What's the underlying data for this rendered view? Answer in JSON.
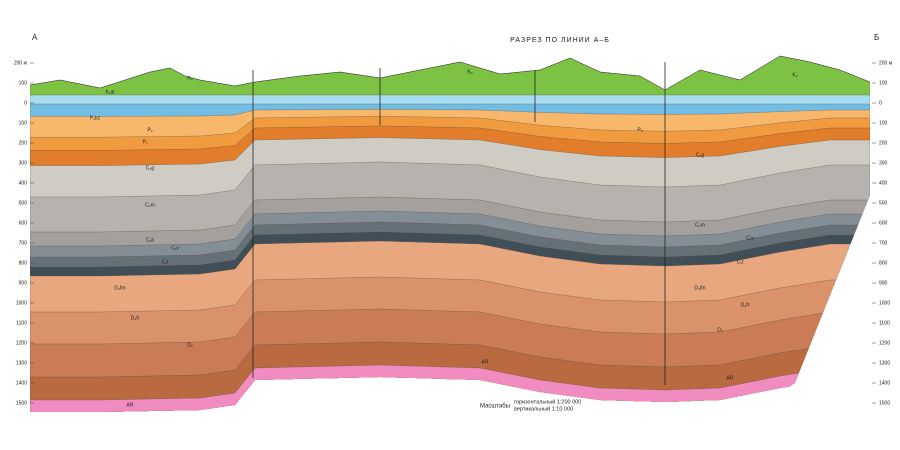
{
  "title": "РАЗРЕЗ ПО ЛИНИИ А–Б",
  "corner_left": "А",
  "corner_right": "Б",
  "depth_axis": {
    "ticks": [
      {
        "value": 200,
        "label": "200 м"
      },
      100,
      0,
      {
        "value": -100,
        "label": "100"
      },
      {
        "value": -200,
        "label": "200"
      },
      {
        "value": -300,
        "label": "300"
      },
      {
        "value": -400,
        "label": "400"
      },
      {
        "value": -500,
        "label": "500"
      },
      {
        "value": -600,
        "label": "600"
      },
      {
        "value": -700,
        "label": "700"
      },
      {
        "value": -800,
        "label": "800"
      },
      {
        "value": -900,
        "label": "900"
      },
      {
        "value": -1000,
        "label": "1000"
      },
      {
        "value": -1100,
        "label": "1100"
      },
      {
        "value": -1200,
        "label": "1200"
      },
      {
        "value": -1300,
        "label": "1300"
      },
      {
        "value": -1400,
        "label": "1400"
      },
      {
        "value": -1500,
        "label": "1500"
      }
    ]
  },
  "scale": {
    "label": "Масштабы",
    "horizontal": "горизонтальный 1:200 000",
    "vertical": "вертикальный 1:10 000"
  },
  "layer_labels": [
    "K₂",
    "K₁al",
    "P₂",
    "P₂kz",
    "P₁",
    "C₃g",
    "C₂m",
    "C₂b",
    "C₁v",
    "C₁t",
    "D₃fm",
    "D₃fr",
    "D₂",
    "AR",
    "K₂",
    "P₂",
    "C₃g",
    "C₂m",
    "C₁v",
    "C₁t",
    "D₃fm",
    "D₃fr",
    "D₂",
    "AR",
    "K₂",
    "AR"
  ]
}
